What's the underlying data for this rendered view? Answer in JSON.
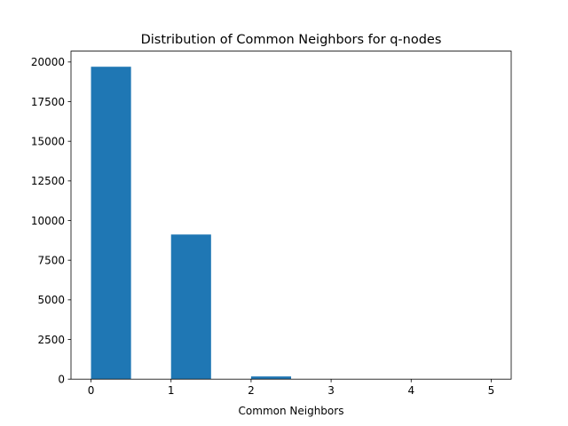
{
  "chart_data": {
    "type": "bar",
    "title": "Distribution of Common Neighbors for q-nodes",
    "xlabel": "Common Neighbors",
    "ylabel": "",
    "bar_color": "#1f77b4",
    "bins": [
      {
        "start": 0.0,
        "end": 0.5,
        "value": 19700
      },
      {
        "start": 0.5,
        "end": 1.0,
        "value": 0
      },
      {
        "start": 1.0,
        "end": 1.5,
        "value": 9120
      },
      {
        "start": 1.5,
        "end": 2.0,
        "value": 0
      },
      {
        "start": 2.0,
        "end": 2.5,
        "value": 170
      },
      {
        "start": 2.5,
        "end": 3.0,
        "value": 0
      },
      {
        "start": 3.0,
        "end": 3.5,
        "value": 5
      },
      {
        "start": 3.5,
        "end": 4.0,
        "value": 0
      },
      {
        "start": 4.0,
        "end": 4.5,
        "value": 1
      },
      {
        "start": 4.5,
        "end": 5.0,
        "value": 1
      }
    ],
    "xlim": [
      -0.25,
      5.25
    ],
    "ylim": [
      0,
      20685
    ],
    "xticks": [
      "0",
      "1",
      "2",
      "3",
      "4",
      "5"
    ],
    "yticks": [
      "0",
      "2500",
      "5000",
      "7500",
      "10000",
      "12500",
      "15000",
      "17500",
      "20000"
    ],
    "grid": false,
    "legend": "none"
  }
}
